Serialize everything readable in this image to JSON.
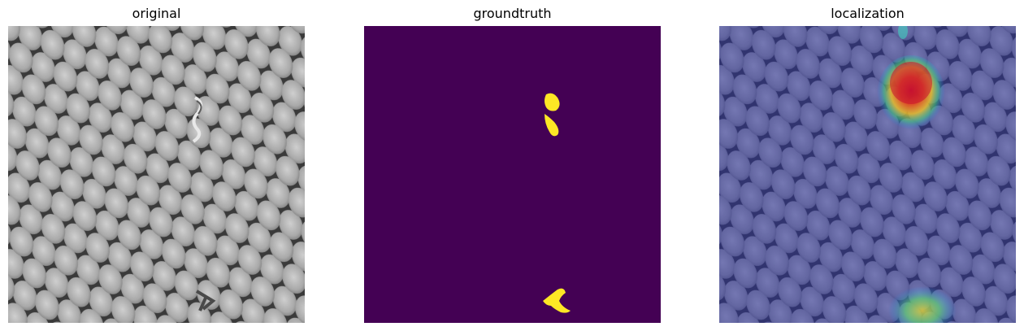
{
  "panels": [
    {
      "title": "original"
    },
    {
      "title": "groundtruth"
    },
    {
      "title": "localization"
    }
  ],
  "colors": {
    "mask_background": "#440154",
    "mask_foreground": "#fde725",
    "overlay_tint": "#2a2f9a"
  }
}
